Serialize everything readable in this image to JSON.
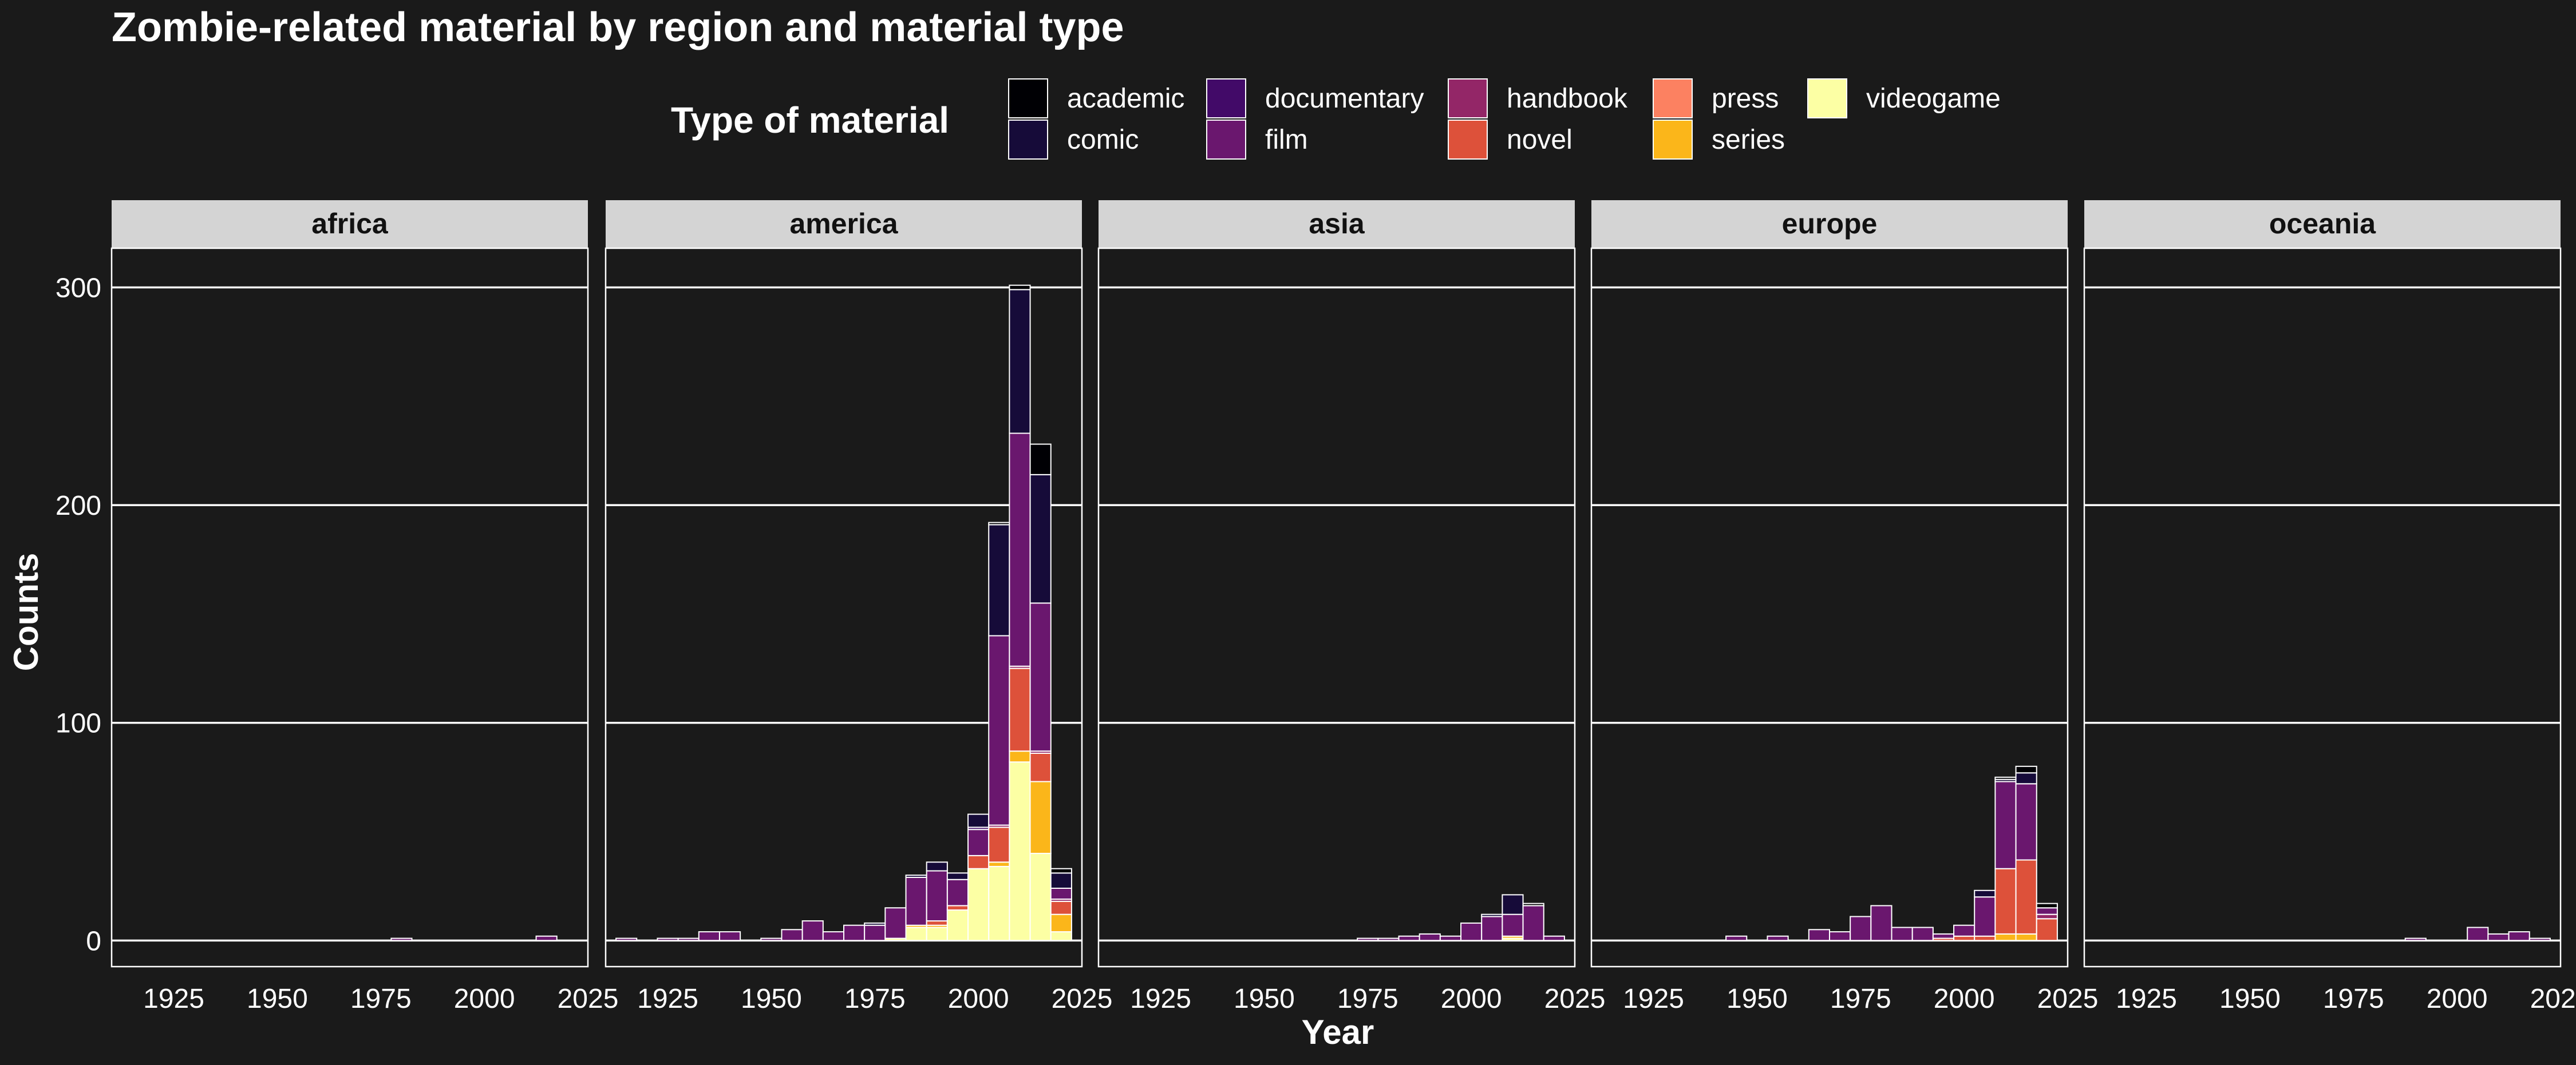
{
  "colors": {
    "background": "#1a1a1a",
    "gridline": "#ffffff",
    "strip": "#d4d4d4",
    "bar_outline": "#ffffff",
    "text": "#ffffff"
  },
  "chart_data": {
    "type": "bar",
    "stacked": true,
    "faceted_by": "region",
    "title": "Zombie-related material by region and material type",
    "xlabel": "Year",
    "ylabel": "Counts",
    "legend_title": "Type of material",
    "legend_position": "top",
    "xlim": [
      1910,
      2025
    ],
    "ylim": [
      -12,
      318
    ],
    "x_ticks": [
      1925,
      1950,
      1975,
      2000,
      2025
    ],
    "y_ticks": [
      0,
      100,
      200,
      300
    ],
    "bin_width": 5,
    "grid": "horizontal major",
    "types": [
      {
        "name": "academic",
        "color": "#000004"
      },
      {
        "name": "comic",
        "color": "#160b39"
      },
      {
        "name": "documentary",
        "color": "#420a68"
      },
      {
        "name": "film",
        "color": "#6a176e"
      },
      {
        "name": "handbook",
        "color": "#932667"
      },
      {
        "name": "novel",
        "color": "#dd513a"
      },
      {
        "name": "press",
        "color": "#fc8161"
      },
      {
        "name": "series",
        "color": "#fbb61a"
      },
      {
        "name": "videogame",
        "color": "#fcffa4"
      }
    ],
    "facets": [
      {
        "name": "africa",
        "bins": [
          {
            "x": 1980,
            "counts": {
              "film": 1
            }
          },
          {
            "x": 2015,
            "counts": {
              "film": 2
            }
          }
        ]
      },
      {
        "name": "america",
        "bins": [
          {
            "x": 1915,
            "counts": {
              "film": 1
            }
          },
          {
            "x": 1925,
            "counts": {
              "film": 1
            }
          },
          {
            "x": 1930,
            "counts": {
              "film": 1
            }
          },
          {
            "x": 1935,
            "counts": {
              "film": 4
            }
          },
          {
            "x": 1940,
            "counts": {
              "film": 4
            }
          },
          {
            "x": 1950,
            "counts": {
              "film": 1
            }
          },
          {
            "x": 1955,
            "counts": {
              "film": 5
            }
          },
          {
            "x": 1960,
            "counts": {
              "film": 9
            }
          },
          {
            "x": 1965,
            "counts": {
              "film": 4
            }
          },
          {
            "x": 1970,
            "counts": {
              "film": 7
            }
          },
          {
            "x": 1975,
            "counts": {
              "film": 7,
              "comic": 1
            }
          },
          {
            "x": 1980,
            "counts": {
              "videogame": 1,
              "film": 14
            }
          },
          {
            "x": 1985,
            "counts": {
              "videogame": 6,
              "series": 1,
              "film": 22,
              "comic": 1
            }
          },
          {
            "x": 1990,
            "counts": {
              "videogame": 6,
              "series": 1,
              "novel": 2,
              "film": 23,
              "comic": 4
            }
          },
          {
            "x": 1995,
            "counts": {
              "videogame": 14,
              "novel": 2,
              "film": 12,
              "comic": 3
            }
          },
          {
            "x": 2000,
            "counts": {
              "videogame": 33,
              "novel": 6,
              "film": 12,
              "documentary": 1,
              "comic": 6
            }
          },
          {
            "x": 2005,
            "counts": {
              "videogame": 34,
              "series": 2,
              "novel": 16,
              "handbook": 1,
              "film": 87,
              "comic": 51,
              "academic": 1
            }
          },
          {
            "x": 2010,
            "counts": {
              "videogame": 82,
              "series": 5,
              "novel": 38,
              "handbook": 1,
              "film": 107,
              "comic": 66,
              "academic": 2
            }
          },
          {
            "x": 2015,
            "counts": {
              "videogame": 40,
              "series": 33,
              "novel": 13,
              "handbook": 1,
              "film": 68,
              "comic": 59,
              "academic": 14
            }
          },
          {
            "x": 2020,
            "counts": {
              "videogame": 4,
              "series": 8,
              "novel": 6,
              "handbook": 1,
              "film": 5,
              "comic": 7,
              "academic": 2
            }
          }
        ]
      },
      {
        "name": "asia",
        "bins": [
          {
            "x": 1975,
            "counts": {
              "film": 1
            }
          },
          {
            "x": 1980,
            "counts": {
              "film": 1
            }
          },
          {
            "x": 1985,
            "counts": {
              "film": 2
            }
          },
          {
            "x": 1990,
            "counts": {
              "film": 3
            }
          },
          {
            "x": 1995,
            "counts": {
              "film": 2
            }
          },
          {
            "x": 2000,
            "counts": {
              "film": 8
            }
          },
          {
            "x": 2005,
            "counts": {
              "film": 11,
              "comic": 1
            }
          },
          {
            "x": 2010,
            "counts": {
              "videogame": 1,
              "series": 1,
              "film": 10,
              "comic": 9
            }
          },
          {
            "x": 2015,
            "counts": {
              "film": 16,
              "academic": 1
            }
          },
          {
            "x": 2020,
            "counts": {
              "film": 2
            }
          }
        ]
      },
      {
        "name": "europe",
        "bins": [
          {
            "x": 1945,
            "counts": {
              "film": 2
            }
          },
          {
            "x": 1955,
            "counts": {
              "film": 2
            }
          },
          {
            "x": 1965,
            "counts": {
              "film": 5
            }
          },
          {
            "x": 1970,
            "counts": {
              "film": 4
            }
          },
          {
            "x": 1975,
            "counts": {
              "film": 11
            }
          },
          {
            "x": 1980,
            "counts": {
              "film": 16
            }
          },
          {
            "x": 1985,
            "counts": {
              "film": 6
            }
          },
          {
            "x": 1990,
            "counts": {
              "film": 6
            }
          },
          {
            "x": 1995,
            "counts": {
              "film": 2,
              "novel": 1
            }
          },
          {
            "x": 2000,
            "counts": {
              "novel": 2,
              "film": 5
            }
          },
          {
            "x": 2005,
            "counts": {
              "novel": 2,
              "film": 18,
              "comic": 3
            }
          },
          {
            "x": 2010,
            "counts": {
              "series": 3,
              "novel": 30,
              "film": 40,
              "comic": 1,
              "academic": 1
            }
          },
          {
            "x": 2015,
            "counts": {
              "series": 3,
              "novel": 34,
              "film": 35,
              "comic": 5,
              "academic": 3
            }
          },
          {
            "x": 2020,
            "counts": {
              "novel": 10,
              "handbook": 2,
              "film": 3,
              "academic": 2
            }
          }
        ]
      },
      {
        "name": "oceania",
        "bins": [
          {
            "x": 1990,
            "counts": {
              "film": 1
            }
          },
          {
            "x": 2005,
            "counts": {
              "film": 6
            }
          },
          {
            "x": 2010,
            "counts": {
              "film": 3
            }
          },
          {
            "x": 2015,
            "counts": {
              "film": 4
            }
          },
          {
            "x": 2020,
            "counts": {
              "film": 1
            }
          }
        ]
      }
    ]
  }
}
